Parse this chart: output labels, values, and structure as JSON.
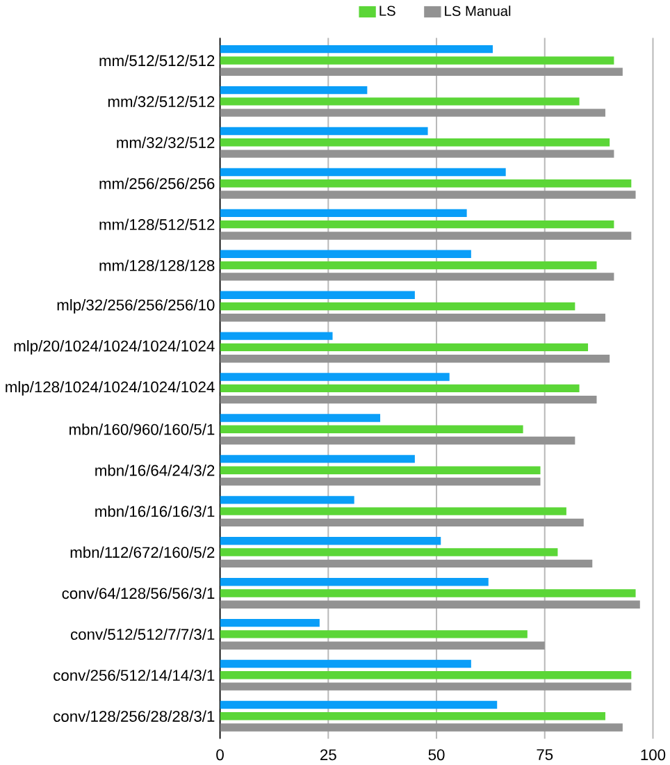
{
  "chart_data": {
    "type": "bar",
    "orientation": "horizontal",
    "categories": [
      "mm/512/512/512",
      "mm/32/512/512",
      "mm/32/32/512",
      "mm/256/256/256",
      "mm/128/512/512",
      "mm/128/128/128",
      "mlp/32/256/256/256/10",
      "mlp/20/1024/1024/1024/1024",
      "mlp/128/1024/1024/1024/1024",
      "mbn/160/960/160/5/1",
      "mbn/16/64/24/3/2",
      "mbn/16/16/16/3/1",
      "mbn/112/672/160/5/2",
      "conv/64/128/56/56/3/1",
      "conv/512/512/7/7/3/1",
      "conv/256/512/14/14/3/1",
      "conv/128/256/28/28/3/1"
    ],
    "series": [
      {
        "color": "#0a9ef8",
        "values": [
          63,
          34,
          48,
          66,
          57,
          58,
          45,
          26,
          53,
          37,
          45,
          31,
          51,
          62,
          23,
          58,
          64
        ]
      },
      {
        "name": "LS",
        "color": "#5bd637",
        "values": [
          91,
          83,
          90,
          95,
          91,
          87,
          82,
          85,
          83,
          70,
          74,
          80,
          78,
          96,
          71,
          95,
          89
        ]
      },
      {
        "name": "LS Manual",
        "color": "#929292",
        "values": [
          93,
          89,
          91,
          96,
          95,
          91,
          89,
          90,
          87,
          82,
          74,
          84,
          86,
          97,
          75,
          95,
          93
        ]
      }
    ],
    "xlim": [
      0,
      100
    ],
    "xticks": [
      0,
      25,
      50,
      75,
      100
    ],
    "grid": "x",
    "legend": "top"
  }
}
